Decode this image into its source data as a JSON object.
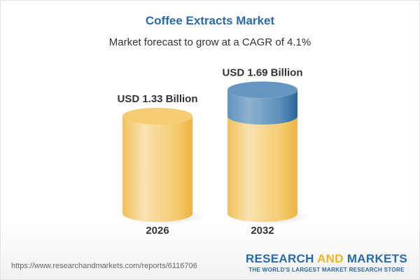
{
  "title": "Coffee Extracts Market",
  "subtitle": "Market forecast to grow at a CAGR of 4.1%",
  "chart_data": {
    "type": "bar",
    "style": "3d-cylinder",
    "categories": [
      "2026",
      "2032"
    ],
    "values": [
      1.33,
      1.69
    ],
    "data_labels": [
      "USD 1.33 Billion",
      "USD 1.69 Billion"
    ],
    "unit": "USD Billion",
    "colors": {
      "base": "#f2c35c",
      "growth": "#4a80b0"
    }
  },
  "footer": {
    "url": "https://www.researchandmarkets.com/reports/6116706",
    "logo_part1": "RESEARCH ",
    "logo_part2": "AND",
    "logo_part3": " MARKETS",
    "logo_tagline": "THE WORLD'S LARGEST MARKET RESEARCH STORE"
  }
}
